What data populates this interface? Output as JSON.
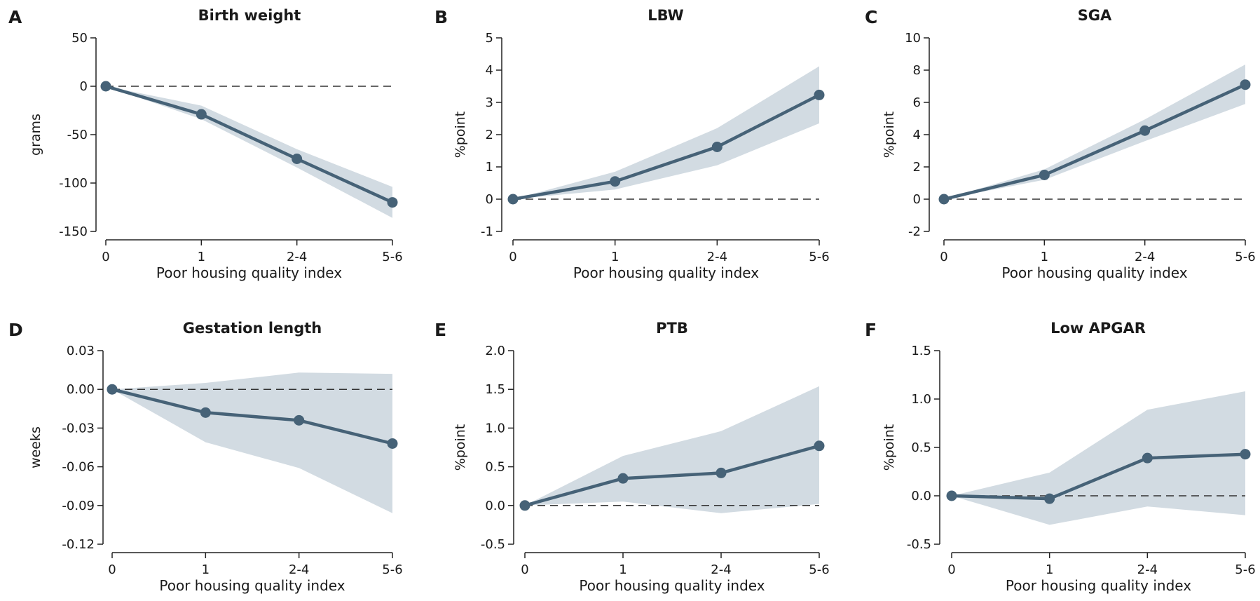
{
  "colors": {
    "line": "#466277",
    "band": "#d2dbe2",
    "axis": "#222222"
  },
  "chart_data": [
    {
      "panel": "A",
      "title": "Birth weight",
      "type": "line",
      "categories": [
        "0",
        "1",
        "2-4",
        "5-6"
      ],
      "values": [
        0,
        -29,
        -75,
        -120
      ],
      "ci_low": [
        0,
        -34,
        -84,
        -136
      ],
      "ci_high": [
        0,
        -20,
        -65,
        -104
      ],
      "xlabel": "Poor housing quality index",
      "ylabel": "grams",
      "ylim": [
        -150,
        50
      ],
      "yticks": [
        50,
        0,
        -50,
        -100,
        -150
      ],
      "ytick_labels": [
        "50",
        "0",
        "-50",
        "-100",
        "-150"
      ],
      "reference_line": 0
    },
    {
      "panel": "B",
      "title": "LBW",
      "type": "line",
      "categories": [
        "0",
        "1",
        "2-4",
        "5-6"
      ],
      "values": [
        0,
        0.55,
        1.62,
        3.23
      ],
      "ci_low": [
        0,
        0.3,
        1.05,
        2.35
      ],
      "ci_high": [
        0,
        0.85,
        2.2,
        4.12
      ],
      "xlabel": "Poor housing quality index",
      "ylabel": "%point",
      "ylim": [
        -1,
        5
      ],
      "yticks": [
        5,
        4,
        3,
        2,
        1,
        0,
        -1
      ],
      "ytick_labels": [
        "5",
        "4",
        "3",
        "2",
        "1",
        "0",
        "-1"
      ],
      "reference_line": 0
    },
    {
      "panel": "C",
      "title": "SGA",
      "type": "line",
      "categories": [
        "0",
        "1",
        "2-4",
        "5-6"
      ],
      "values": [
        0,
        1.5,
        4.25,
        7.1
      ],
      "ci_low": [
        0,
        1.2,
        3.6,
        5.9
      ],
      "ci_high": [
        0,
        1.85,
        4.95,
        8.35
      ],
      "xlabel": "Poor housing quality index",
      "ylabel": "%point",
      "ylim": [
        -2,
        10
      ],
      "yticks": [
        10,
        8,
        6,
        4,
        2,
        0,
        -2
      ],
      "ytick_labels": [
        "10",
        "8",
        "6",
        "4",
        "2",
        "0",
        "-2"
      ],
      "reference_line": 0
    },
    {
      "panel": "D",
      "title": "Gestation length",
      "type": "line",
      "categories": [
        "0",
        "1",
        "2-4",
        "5-6"
      ],
      "values": [
        0,
        -0.018,
        -0.024,
        -0.042
      ],
      "ci_low": [
        0,
        -0.041,
        -0.061,
        -0.096
      ],
      "ci_high": [
        0,
        0.005,
        0.013,
        0.012
      ],
      "xlabel": "Poor housing quality index",
      "ylabel": "weeks",
      "ylim": [
        -0.12,
        0.03
      ],
      "yticks": [
        0.03,
        0,
        -0.03,
        -0.06,
        -0.09,
        -0.12
      ],
      "ytick_labels": [
        "0.03",
        "0.00",
        "-0.03",
        "-0.06",
        "-0.09",
        "-0.12"
      ],
      "reference_line": 0
    },
    {
      "panel": "E",
      "title": "PTB",
      "type": "line",
      "categories": [
        "0",
        "1",
        "2-4",
        "5-6"
      ],
      "values": [
        0,
        0.35,
        0.42,
        0.77
      ],
      "ci_low": [
        0,
        0.05,
        -0.1,
        0.02
      ],
      "ci_high": [
        0,
        0.64,
        0.96,
        1.54
      ],
      "xlabel": "Poor housing quality index",
      "ylabel": "%point",
      "ylim": [
        -0.5,
        2.0
      ],
      "yticks": [
        2.0,
        1.5,
        1.0,
        0.5,
        0,
        -0.5
      ],
      "ytick_labels": [
        "2.0",
        "1.5",
        "1.0",
        "0.5",
        "0.0",
        "-0.5"
      ],
      "reference_line": 0
    },
    {
      "panel": "F",
      "title": "Low APGAR",
      "type": "line",
      "categories": [
        "0",
        "1",
        "2-4",
        "5-6"
      ],
      "values": [
        0,
        -0.03,
        0.39,
        0.43
      ],
      "ci_low": [
        0,
        -0.3,
        -0.11,
        -0.2
      ],
      "ci_high": [
        0,
        0.24,
        0.89,
        1.08
      ],
      "xlabel": "Poor housing quality index",
      "ylabel": "%point",
      "ylim": [
        -0.5,
        1.5
      ],
      "yticks": [
        1.5,
        1.0,
        0.5,
        0,
        -0.5
      ],
      "ytick_labels": [
        "1.5",
        "1.0",
        "0.5",
        "0.0",
        "-0.5"
      ],
      "reference_line": 0
    }
  ]
}
